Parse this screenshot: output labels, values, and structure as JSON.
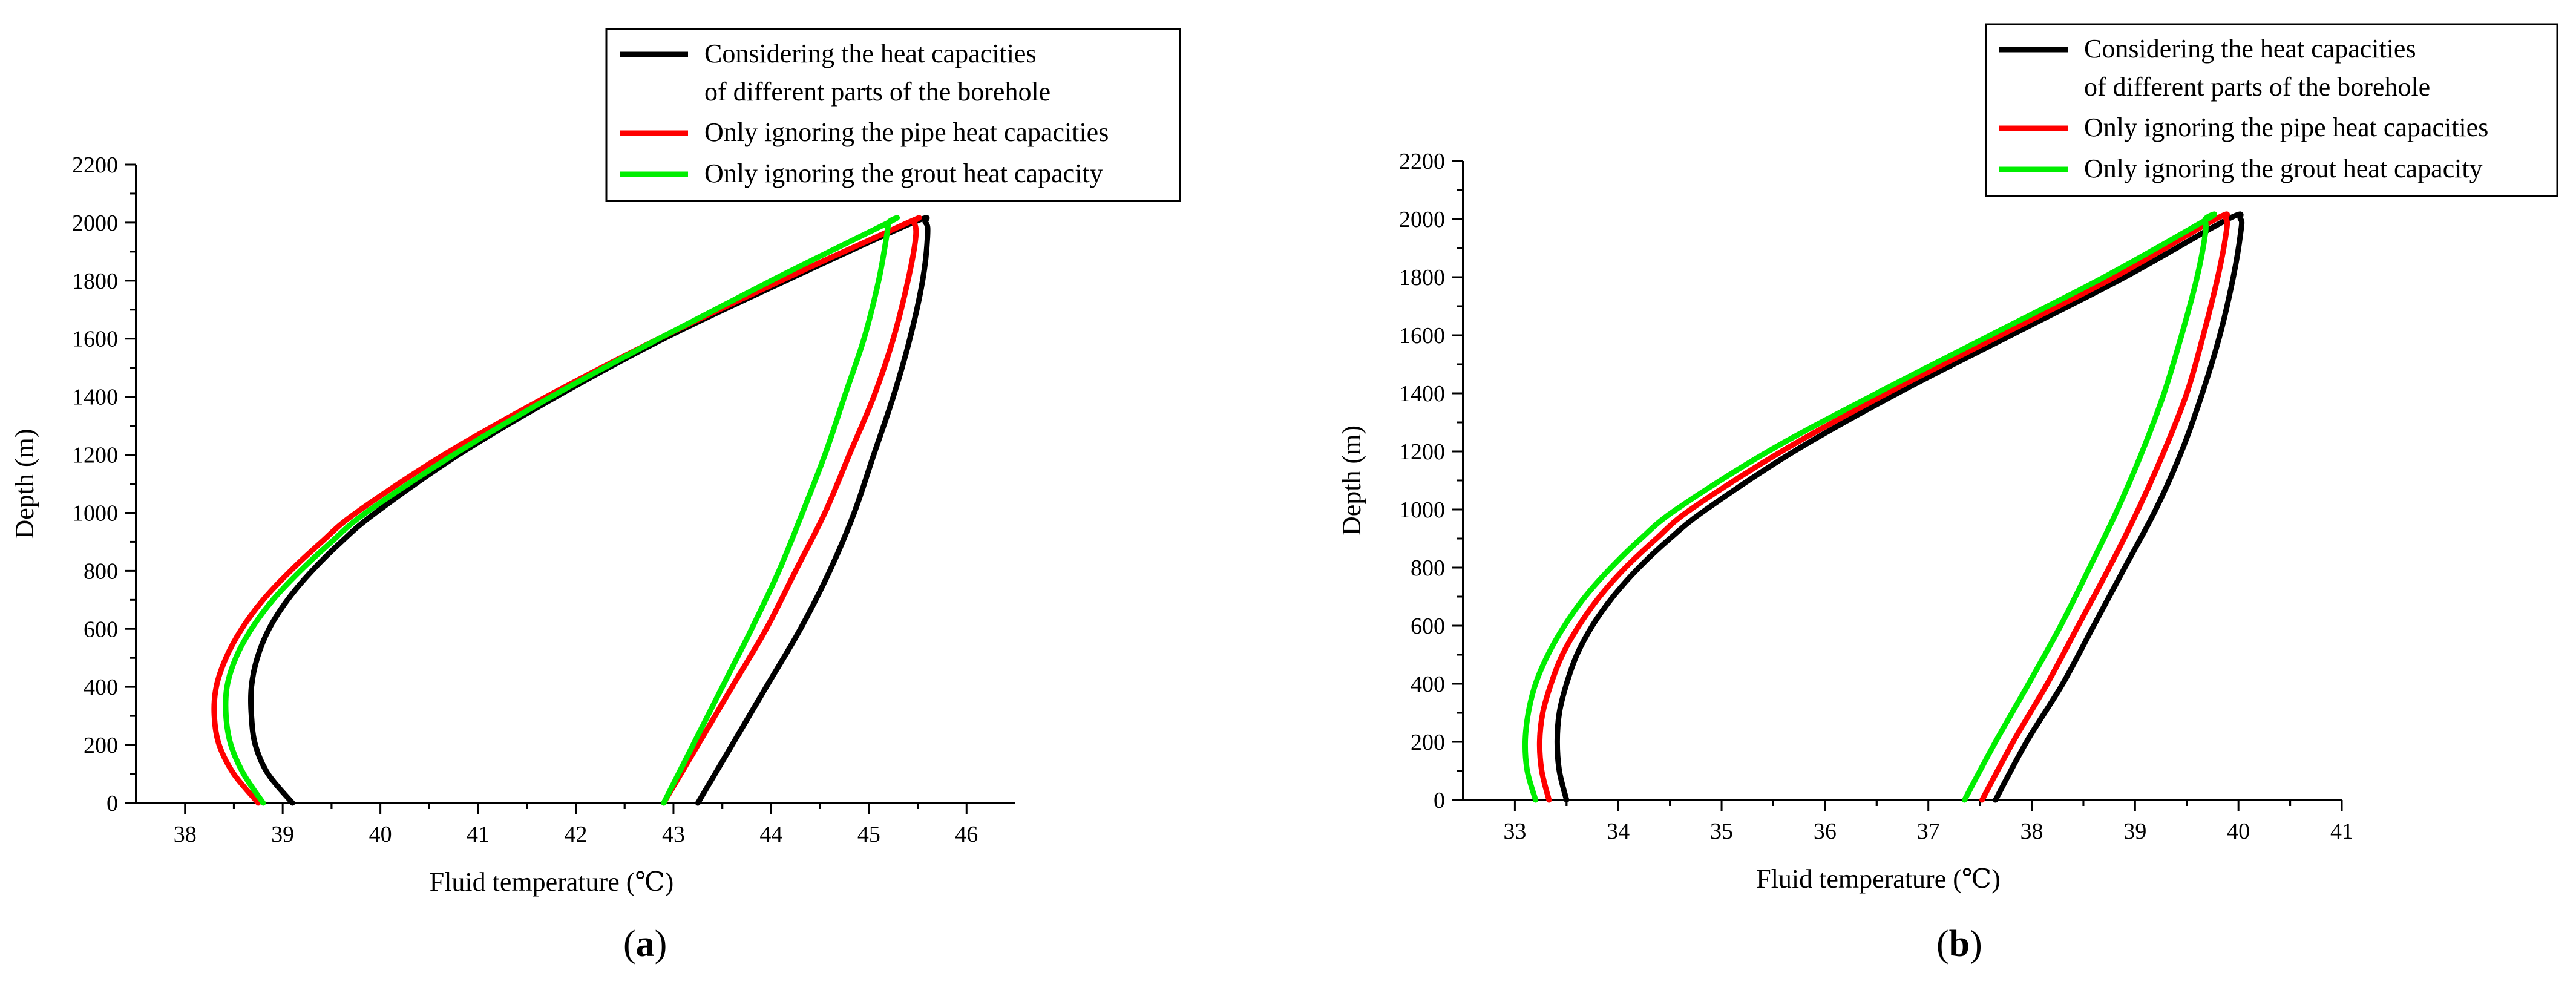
{
  "chart_data": [
    {
      "panel": "a",
      "panel_label": "(a)",
      "type": "line",
      "xlabel": "Fluid temperature (℃)",
      "ylabel": "Depth (m)",
      "xlim": [
        37.5,
        46.5
      ],
      "ylim": [
        0,
        2200
      ],
      "xticks": [
        38,
        39,
        40,
        41,
        42,
        43,
        44,
        45,
        46
      ],
      "yticks": [
        0,
        200,
        400,
        600,
        800,
        1000,
        1200,
        1400,
        1600,
        1800,
        2000,
        2200
      ],
      "legend": [
        {
          "line1": "Considering the heat capacities",
          "line2": "of different parts of the borehole",
          "color": "#000000"
        },
        {
          "line1": "Only ignoring the pipe heat capacities",
          "line2": "",
          "color": "#ff0000"
        },
        {
          "line1": "Only ignoring the grout heat capacity",
          "line2": "",
          "color": "#00ee00"
        }
      ],
      "series": [
        {
          "name": "Considering the heat capacities of different parts of the borehole",
          "color": "#000000",
          "downward": {
            "depth": [
              0,
              100,
              200,
              300,
              400,
              500,
              600,
              700,
              800,
              900,
              1000,
              1200,
              1400,
              1600,
              1800,
              2000
            ],
            "temp": [
              39.1,
              38.85,
              38.72,
              38.68,
              38.68,
              38.74,
              38.86,
              39.05,
              39.3,
              39.6,
              39.95,
              40.8,
              41.8,
              42.9,
              44.15,
              45.45
            ]
          },
          "upward": {
            "depth": [
              0,
              200,
              400,
              600,
              800,
              1000,
              1200,
              1400,
              1600,
              1800,
              1950,
              2000
            ],
            "temp": [
              43.25,
              43.6,
              43.95,
              44.3,
              44.6,
              44.85,
              45.05,
              45.25,
              45.42,
              45.55,
              45.6,
              45.58
            ]
          }
        },
        {
          "name": "Only ignoring the pipe heat capacities",
          "color": "#ff0000",
          "downward": {
            "depth": [
              0,
              100,
              200,
              300,
              400,
              500,
              600,
              700,
              800,
              900,
              1000,
              1200,
              1400,
              1600,
              1800,
              2000
            ],
            "temp": [
              38.75,
              38.5,
              38.35,
              38.3,
              38.32,
              38.42,
              38.58,
              38.8,
              39.08,
              39.4,
              39.75,
              40.65,
              41.7,
              42.85,
              44.1,
              45.4
            ]
          },
          "upward": {
            "depth": [
              0,
              200,
              400,
              600,
              800,
              1000,
              1200,
              1400,
              1600,
              1800,
              1950,
              2000
            ],
            "temp": [
              42.9,
              43.25,
              43.6,
              43.95,
              44.25,
              44.55,
              44.8,
              45.05,
              45.25,
              45.4,
              45.48,
              45.46
            ]
          }
        },
        {
          "name": "Only ignoring the grout heat capacity",
          "color": "#00ee00",
          "downward": {
            "depth": [
              0,
              100,
              200,
              300,
              400,
              500,
              600,
              700,
              800,
              900,
              1000,
              1200,
              1400,
              1600,
              1800,
              2000
            ],
            "temp": [
              38.8,
              38.6,
              38.47,
              38.42,
              38.43,
              38.52,
              38.68,
              38.9,
              39.18,
              39.5,
              39.85,
              40.75,
              41.75,
              42.85,
              44.0,
              45.2
            ]
          },
          "upward": {
            "depth": [
              0,
              200,
              400,
              600,
              800,
              1000,
              1200,
              1400,
              1600,
              1800,
              1950,
              2000
            ],
            "temp": [
              42.9,
              43.2,
              43.5,
              43.8,
              44.08,
              44.32,
              44.55,
              44.75,
              44.95,
              45.1,
              45.18,
              45.2
            ]
          }
        }
      ]
    },
    {
      "panel": "b",
      "panel_label": "(b)",
      "type": "line",
      "xlabel": "Fluid temperature (℃)",
      "ylabel": "Depth (m)",
      "xlim": [
        32.5,
        41
      ],
      "ylim": [
        0,
        2200
      ],
      "xticks": [
        33,
        34,
        35,
        36,
        37,
        38,
        39,
        40,
        41
      ],
      "yticks": [
        0,
        200,
        400,
        600,
        800,
        1000,
        1200,
        1400,
        1600,
        1800,
        2000,
        2200
      ],
      "legend": [
        {
          "line1": "Considering the heat capacities",
          "line2": "of different parts of the borehole",
          "color": "#000000"
        },
        {
          "line1": "Only ignoring the pipe heat capacities",
          "line2": "",
          "color": "#ff0000"
        },
        {
          "line1": "Only ignoring the grout heat capacity",
          "line2": "",
          "color": "#00ee00"
        }
      ],
      "series": [
        {
          "name": "Considering the heat capacities of different parts of the borehole",
          "color": "#000000",
          "downward": {
            "depth": [
              0,
              100,
              200,
              300,
              400,
              500,
              600,
              700,
              800,
              900,
              1000,
              1200,
              1400,
              1600,
              1800,
              2000
            ],
            "temp": [
              33.5,
              33.43,
              33.41,
              33.43,
              33.5,
              33.6,
              33.75,
              33.95,
              34.2,
              34.5,
              34.85,
              35.7,
              36.7,
              37.8,
              38.9,
              39.9
            ]
          },
          "upward": {
            "depth": [
              0,
              200,
              400,
              600,
              800,
              1000,
              1200,
              1400,
              1600,
              1800,
              1950,
              2000
            ],
            "temp": [
              37.65,
              37.95,
              38.3,
              38.6,
              38.9,
              39.2,
              39.45,
              39.65,
              39.82,
              39.95,
              40.02,
              40.02
            ]
          }
        },
        {
          "name": "Only ignoring the pipe heat capacities",
          "color": "#ff0000",
          "downward": {
            "depth": [
              0,
              100,
              200,
              300,
              400,
              500,
              600,
              700,
              800,
              900,
              1000,
              1200,
              1400,
              1600,
              1800,
              2000
            ],
            "temp": [
              33.33,
              33.26,
              33.24,
              33.27,
              33.35,
              33.46,
              33.62,
              33.82,
              34.07,
              34.37,
              34.7,
              35.58,
              36.6,
              37.7,
              38.8,
              39.78
            ]
          },
          "upward": {
            "depth": [
              0,
              200,
              400,
              600,
              800,
              1000,
              1200,
              1400,
              1600,
              1800,
              1950,
              2000
            ],
            "temp": [
              37.52,
              37.82,
              38.15,
              38.45,
              38.75,
              39.03,
              39.28,
              39.5,
              39.66,
              39.8,
              39.88,
              39.88
            ]
          }
        },
        {
          "name": "Only ignoring the grout heat capacity",
          "color": "#00ee00",
          "downward": {
            "depth": [
              0,
              100,
              200,
              300,
              400,
              500,
              600,
              700,
              800,
              900,
              1000,
              1200,
              1400,
              1600,
              1800,
              2000
            ],
            "temp": [
              33.2,
              33.12,
              33.1,
              33.13,
              33.2,
              33.32,
              33.48,
              33.68,
              33.93,
              34.22,
              34.56,
              35.45,
              36.5,
              37.6,
              38.7,
              39.7
            ]
          },
          "upward": {
            "depth": [
              0,
              200,
              400,
              600,
              800,
              1000,
              1200,
              1400,
              1600,
              1800,
              1950,
              2000
            ],
            "temp": [
              37.35,
              37.65,
              37.97,
              38.28,
              38.56,
              38.83,
              39.07,
              39.28,
              39.45,
              39.6,
              39.68,
              39.68
            ]
          }
        }
      ]
    }
  ]
}
